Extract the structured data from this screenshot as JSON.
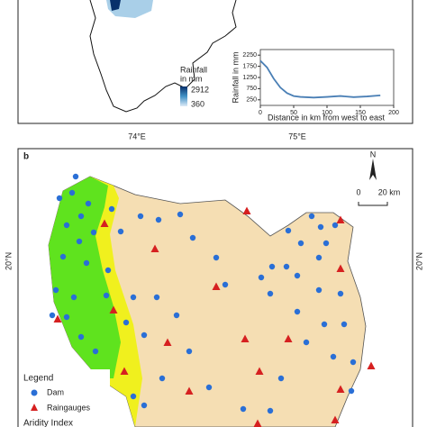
{
  "panel_a": {
    "rainfall_legend": {
      "title_line1": "Rainfall",
      "title_line2": "in mm",
      "max": "2912",
      "min": "360"
    }
  },
  "chart_data": {
    "type": "line",
    "xlabel": "Distance in km from west to east",
    "ylabel": "Rainfall in mm",
    "x": [
      0,
      10,
      20,
      30,
      40,
      50,
      60,
      80,
      100,
      120,
      140,
      160,
      180
    ],
    "series": [
      {
        "color": "#4a7fb5",
        "values": [
          2000,
          1700,
          1200,
          800,
          550,
          420,
          380,
          350,
          380,
          420,
          370,
          400,
          450
        ]
      }
    ],
    "xlim": [
      0,
      200
    ],
    "ylim": [
      0,
      2500
    ],
    "xticks": [
      0,
      50,
      100,
      150,
      200
    ],
    "yticks": [
      250,
      750,
      1250,
      1750,
      2250
    ]
  },
  "panel_b": {
    "label": "b",
    "lon_left": "74°E",
    "lon_right": "75°E",
    "lat_left": "20°N",
    "lat_right": "20°N",
    "north": "N",
    "scale_start": "0",
    "scale_end": "20 km",
    "legend": {
      "title": "Legend",
      "dam": "Dam",
      "raingauges": "Raingauges",
      "aridity": "Aridity Index"
    }
  }
}
